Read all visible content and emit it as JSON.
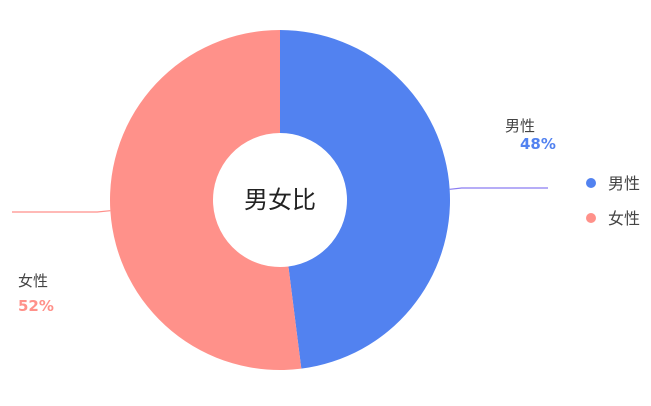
{
  "chart_data": {
    "type": "pie",
    "donut": true,
    "title": "男女比",
    "slices": [
      {
        "label": "男性",
        "value": 48,
        "value_label": "48%",
        "color": "#5282f0",
        "leader_color": "#8a7cf2"
      },
      {
        "label": "女性",
        "value": 52,
        "value_label": "52%",
        "color": "#ff918a",
        "leader_color": "#ff8f8a"
      }
    ],
    "legend": {
      "placement": "right",
      "entries": [
        "男性",
        "女性"
      ]
    },
    "label_color": "#444444"
  }
}
